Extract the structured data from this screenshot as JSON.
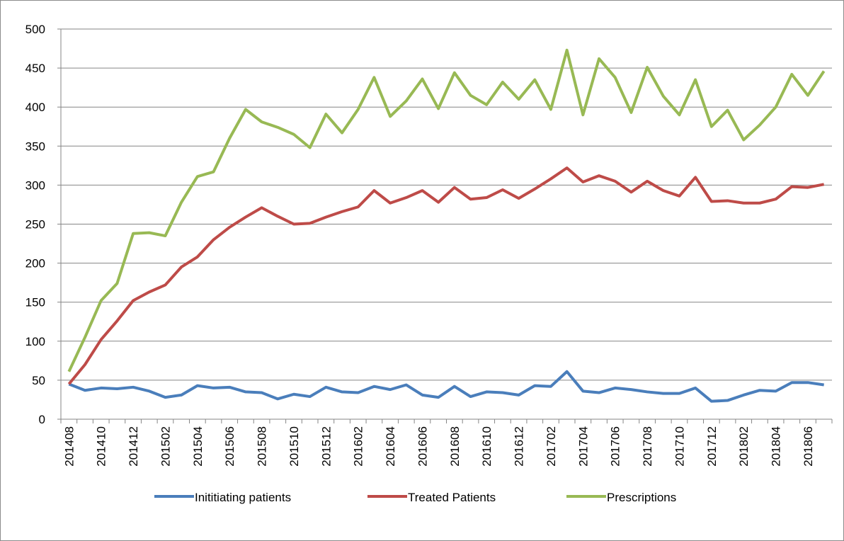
{
  "chart_data": {
    "type": "line",
    "categories": [
      "201408",
      null,
      "201410",
      null,
      "201412",
      null,
      "201502",
      null,
      "201504",
      null,
      "201506",
      null,
      "201508",
      null,
      "201510",
      null,
      "201512",
      null,
      "201602",
      null,
      "201604",
      null,
      "201606",
      null,
      "201608",
      null,
      "201610",
      null,
      "201612",
      null,
      "201702",
      null,
      "201704",
      null,
      "201706",
      null,
      "201708",
      null,
      "201710",
      null,
      "201712",
      null,
      "201802",
      null,
      "201804",
      null,
      "201806",
      null
    ],
    "series": [
      {
        "name": "Inititiating patients",
        "color": "#4a7ebb",
        "values": [
          45,
          37,
          40,
          39,
          41,
          36,
          28,
          31,
          43,
          40,
          41,
          35,
          34,
          26,
          32,
          29,
          41,
          35,
          34,
          42,
          38,
          44,
          31,
          28,
          42,
          29,
          35,
          34,
          31,
          43,
          42,
          61,
          36,
          34,
          40,
          38,
          35,
          33,
          33,
          40,
          23,
          24,
          31,
          37,
          36,
          47,
          47,
          44
        ]
      },
      {
        "name": "Treated Patients",
        "color": "#be4b48",
        "values": [
          45,
          70,
          102,
          126,
          152,
          163,
          172,
          195,
          208,
          230,
          246,
          259,
          271,
          260,
          250,
          251,
          259,
          266,
          272,
          293,
          277,
          284,
          293,
          278,
          297,
          282,
          284,
          294,
          283,
          295,
          308,
          322,
          304,
          312,
          305,
          291,
          305,
          293,
          286,
          310,
          279,
          280,
          277,
          277,
          282,
          298,
          297,
          301
        ]
      },
      {
        "name": "Prescriptions",
        "color": "#98b954",
        "values": [
          61,
          105,
          152,
          174,
          238,
          239,
          235,
          278,
          311,
          317,
          360,
          397,
          381,
          374,
          365,
          348,
          391,
          367,
          397,
          438,
          388,
          408,
          436,
          398,
          444,
          415,
          403,
          432,
          410,
          435,
          397,
          473,
          390,
          462,
          438,
          393,
          451,
          414,
          390,
          435,
          375,
          396,
          358,
          377,
          400,
          442,
          415,
          446
        ]
      }
    ],
    "ylim": [
      0,
      500
    ],
    "yticks": [
      0,
      50,
      100,
      150,
      200,
      250,
      300,
      350,
      400,
      450,
      500
    ],
    "grid": true,
    "legend": "bottom"
  }
}
